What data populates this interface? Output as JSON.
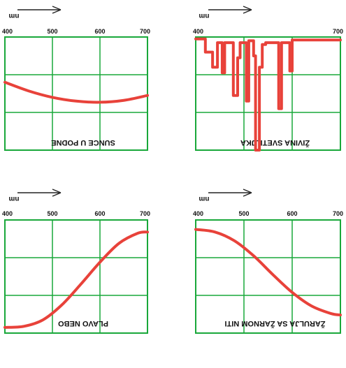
{
  "chart_data": [
    {
      "type": "line",
      "caption": "SUNCE U PODNE",
      "unit": "nm",
      "x_ticks": [
        "400",
        "500",
        "600",
        "700"
      ],
      "xlim": [
        400,
        700
      ],
      "ylim": [
        0,
        3
      ],
      "grid": true,
      "series": [
        {
          "x": [
            400,
            450,
            500,
            550,
            600,
            650,
            700
          ],
          "values": [
            1.8,
            1.57,
            1.4,
            1.3,
            1.27,
            1.32,
            1.45
          ]
        }
      ],
      "colors": {
        "line": "#e8423a",
        "grid": "#19a83a"
      }
    },
    {
      "type": "line",
      "caption": "ŽIVINA SVETILJKA",
      "unit": "nm",
      "x_ticks": [
        "400",
        "700"
      ],
      "xlim": [
        400,
        700
      ],
      "ylim": [
        0,
        3
      ],
      "grid": true,
      "series": [
        {
          "x": [
            400,
            420,
            420,
            435,
            435,
            445,
            445,
            455,
            455,
            460,
            460,
            478,
            478,
            487,
            487,
            492,
            492,
            505,
            505,
            510,
            510,
            520,
            520,
            524,
            524,
            532,
            532,
            538,
            538,
            545,
            545,
            572,
            572,
            578,
            578,
            595,
            595,
            600,
            600,
            700
          ],
          "values": [
            2.95,
            2.95,
            2.6,
            2.6,
            2.2,
            2.2,
            2.85,
            2.85,
            2.05,
            2.05,
            2.85,
            2.85,
            1.45,
            1.45,
            2.45,
            2.45,
            2.85,
            2.85,
            1.3,
            1.3,
            2.9,
            2.9,
            2.5,
            2.5,
            0.0,
            0.0,
            2.2,
            2.2,
            2.8,
            2.8,
            2.85,
            2.85,
            1.1,
            1.1,
            2.85,
            2.85,
            2.1,
            2.1,
            2.92,
            2.92
          ]
        }
      ],
      "colors": {
        "line": "#e8423a",
        "grid": "#19a83a"
      }
    },
    {
      "type": "line",
      "caption": "PLAVO NEBO",
      "unit": "nm",
      "x_ticks": [
        "400",
        "500",
        "600",
        "700"
      ],
      "xlim": [
        400,
        700
      ],
      "ylim": [
        0,
        3
      ],
      "grid": true,
      "series": [
        {
          "x": [
            400,
            440,
            480,
            520,
            560,
            600,
            640,
            680,
            700
          ],
          "values": [
            0.15,
            0.18,
            0.35,
            0.75,
            1.3,
            1.88,
            2.38,
            2.65,
            2.68
          ]
        }
      ],
      "colors": {
        "line": "#e8423a",
        "grid": "#19a83a"
      }
    },
    {
      "type": "line",
      "caption": "ŽARULJA SA ŽARNOM NITI",
      "unit": "nm",
      "x_ticks": [
        "400",
        "500",
        "600",
        "700"
      ],
      "xlim": [
        400,
        700
      ],
      "ylim": [
        0,
        3
      ],
      "grid": true,
      "series": [
        {
          "x": [
            400,
            440,
            480,
            520,
            560,
            600,
            640,
            680,
            700
          ],
          "values": [
            2.75,
            2.68,
            2.45,
            2.05,
            1.55,
            1.08,
            0.72,
            0.52,
            0.48
          ]
        }
      ],
      "colors": {
        "line": "#e8423a",
        "grid": "#19a83a"
      }
    }
  ]
}
